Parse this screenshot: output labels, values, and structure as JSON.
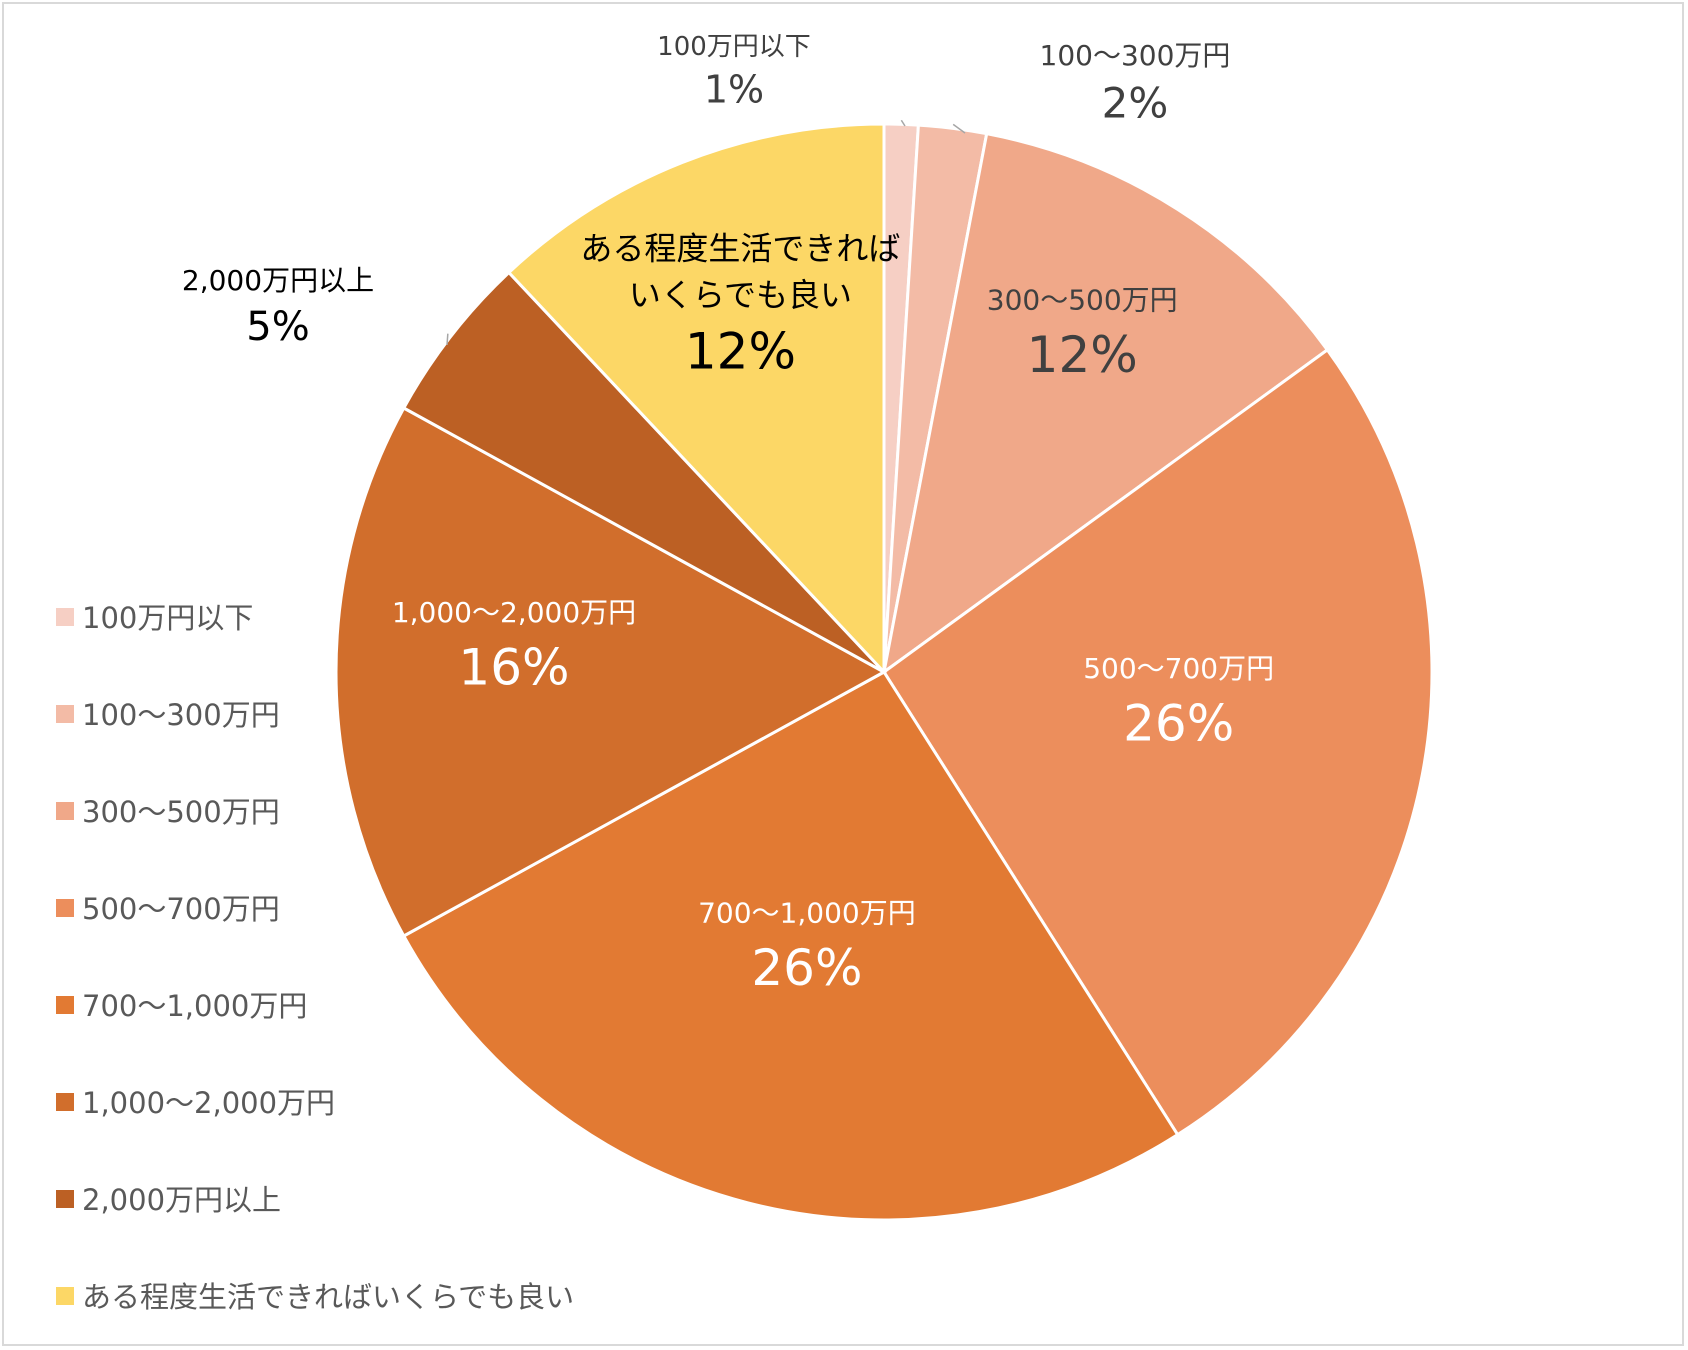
{
  "chart_data": {
    "type": "pie",
    "title": "",
    "legend_position": "left",
    "categories": [
      "100万円以下",
      "100〜300万円",
      "300〜500万円",
      "500〜700万円",
      "700〜1,000万円",
      "1,000〜2,000万円",
      "2,000万円以上",
      "ある程度生活できればいくらでも良い"
    ],
    "values": [
      1,
      2,
      12,
      26,
      26,
      16,
      5,
      12
    ],
    "percent_labels": [
      "1%",
      "2%",
      "12%",
      "26%",
      "26%",
      "16%",
      "5%",
      "12%"
    ],
    "slice_label_lines": [
      [
        "100万円以下"
      ],
      [
        "100〜300万円"
      ],
      [
        "300〜500万円"
      ],
      [
        "500〜700万円"
      ],
      [
        "700〜1,000万円"
      ],
      [
        "1,000〜2,000万円"
      ],
      [
        "2,000万円以上"
      ],
      [
        "ある程度生活できれば",
        "いくらでも良い"
      ]
    ],
    "colors": [
      "#f6cfc4",
      "#f3bba6",
      "#f0a889",
      "#ec8e5c",
      "#e27a33",
      "#d16e2c",
      "#bc6024",
      "#fcd766"
    ],
    "label_colors": [
      "#404040",
      "#404040",
      "#404040",
      "#ffffff",
      "#ffffff",
      "#ffffff",
      "#000000",
      "#000000"
    ]
  }
}
